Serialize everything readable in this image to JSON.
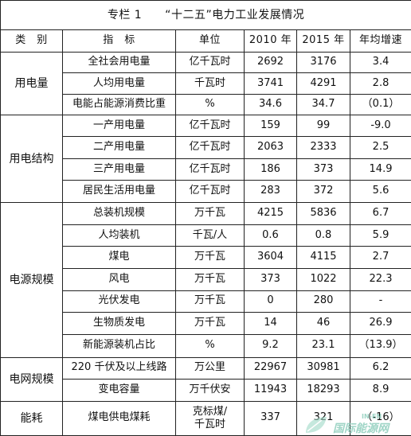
{
  "title": "专栏 1　　“十二五”电力工业发展情况",
  "headers": {
    "category": "类　别",
    "indicator": "指　标",
    "unit": "单位",
    "y2010": "2010 年",
    "y2015": "2015 年",
    "growth": "年均增速"
  },
  "groups": [
    {
      "category": "用电量",
      "rows": [
        {
          "indicator": "全社会用电量",
          "unit": "亿千瓦时",
          "v2010": "2692",
          "v2015": "3176",
          "growth": "3.4"
        },
        {
          "indicator": "人均用电量",
          "unit": "千瓦时",
          "v2010": "3741",
          "v2015": "4291",
          "growth": "2.8"
        },
        {
          "indicator": "电能占能源消费比重",
          "unit": "%",
          "v2010": "34.6",
          "v2015": "34.7",
          "growth": "（0.1）"
        }
      ]
    },
    {
      "category": "用电结构",
      "rows": [
        {
          "indicator": "一产用电量",
          "unit": "亿千瓦时",
          "v2010": "159",
          "v2015": "99",
          "growth": "-9.0"
        },
        {
          "indicator": "二产用电量",
          "unit": "亿千瓦时",
          "v2010": "2063",
          "v2015": "2333",
          "growth": "2.5"
        },
        {
          "indicator": "三产用电量",
          "unit": "亿千瓦时",
          "v2010": "186",
          "v2015": "373",
          "growth": "14.9"
        },
        {
          "indicator": "居民生活用电量",
          "unit": "亿千瓦时",
          "v2010": "283",
          "v2015": "372",
          "growth": "5.6"
        }
      ]
    },
    {
      "category": "电源规模",
      "rows": [
        {
          "indicator": "总装机规模",
          "unit": "万千瓦",
          "v2010": "4215",
          "v2015": "5836",
          "growth": "6.7"
        },
        {
          "indicator": "人均装机",
          "unit": "千瓦/人",
          "v2010": "0.6",
          "v2015": "0.8",
          "growth": "5.9"
        },
        {
          "indicator": "煤电",
          "unit": "万千瓦",
          "v2010": "3604",
          "v2015": "4115",
          "growth": "2.7"
        },
        {
          "indicator": "风电",
          "unit": "万千瓦",
          "v2010": "373",
          "v2015": "1022",
          "growth": "22.3"
        },
        {
          "indicator": "光伏发电",
          "unit": "万千瓦",
          "v2010": "0",
          "v2015": "280",
          "growth": "-"
        },
        {
          "indicator": "生物质发电",
          "unit": "万千瓦",
          "v2010": "14",
          "v2015": "46",
          "growth": "26.9"
        },
        {
          "indicator": "新能源装机占比",
          "unit": "%",
          "v2010": "9.2",
          "v2015": "23.1",
          "growth": "（13.9）"
        }
      ]
    },
    {
      "category": "电网规模",
      "rows": [
        {
          "indicator": "220 千伏及以上线路",
          "unit": "万公里",
          "v2010": "22967",
          "v2015": "30981",
          "growth": "6.2"
        },
        {
          "indicator": "变电容量",
          "unit": "万千伏安",
          "v2010": "11943",
          "v2015": "18293",
          "growth": "8.9"
        }
      ]
    },
    {
      "category": "能耗",
      "rows": [
        {
          "indicator": "煤电供电煤耗",
          "unit": "克标煤/千瓦时",
          "v2010": "337",
          "v2015": "321",
          "growth": "（-16）"
        }
      ]
    }
  ],
  "watermark": {
    "text": "国际能源网",
    "tag": "IN-EN",
    "color": "#7fc7b4",
    "icon": "leaf-logo-icon"
  }
}
